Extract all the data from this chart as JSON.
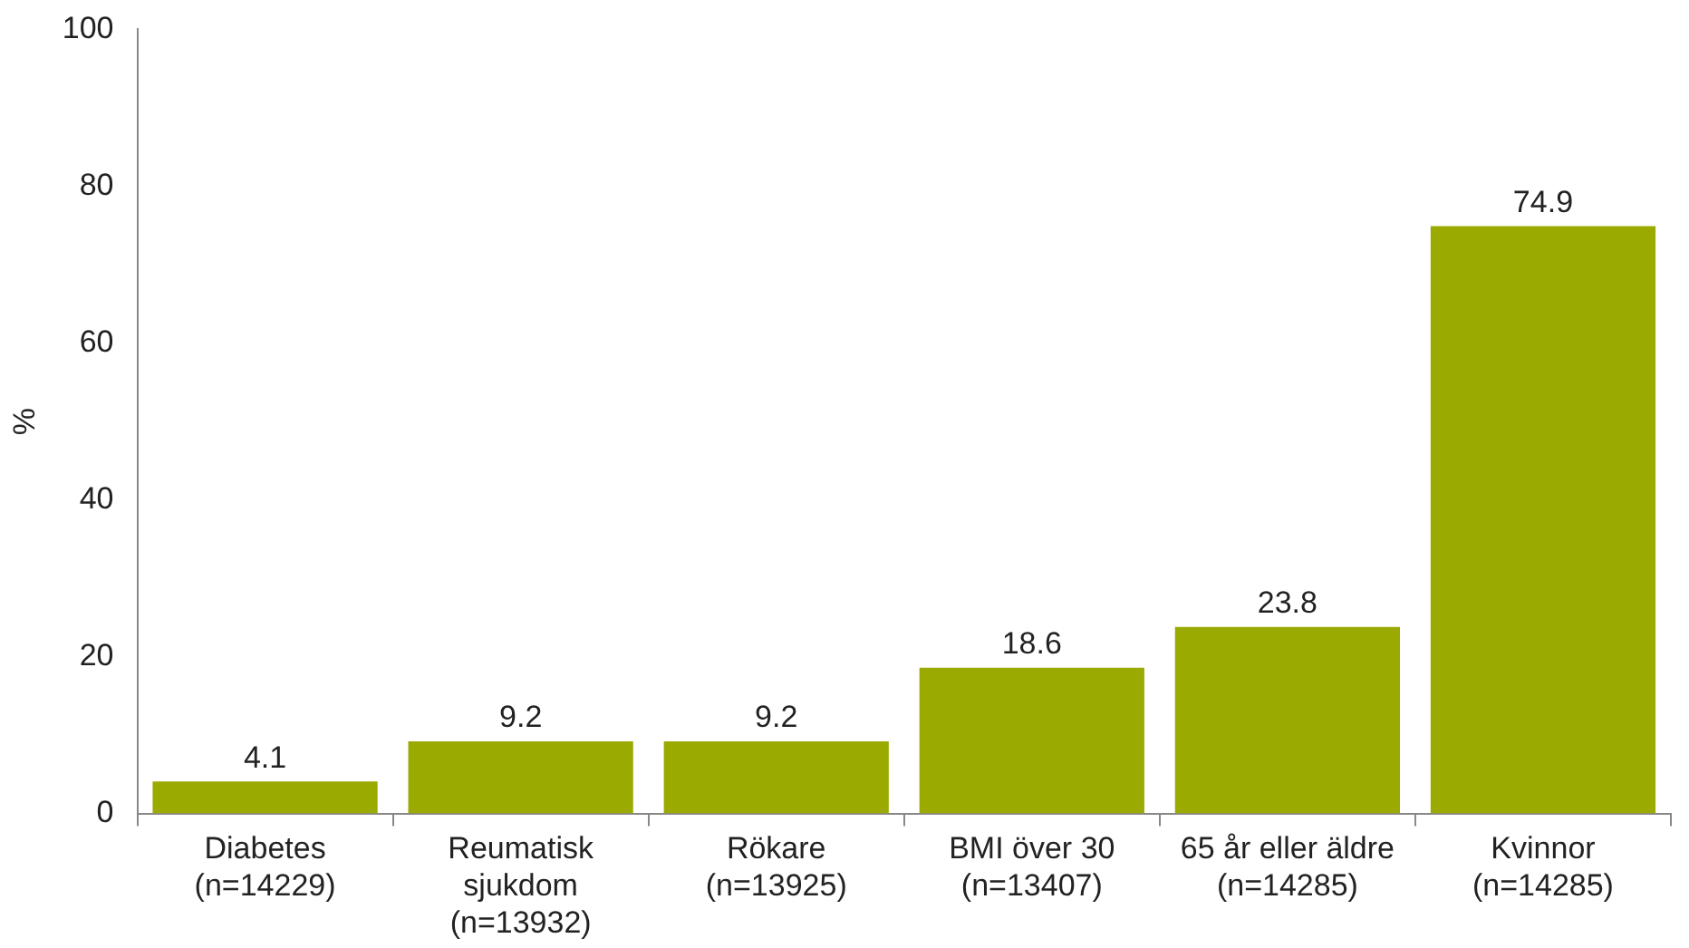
{
  "chart_data": {
    "type": "bar",
    "ylabel": "%",
    "categories": [
      "Diabetes (n=14229)",
      "Reumatisk sjukdom (n=13932)",
      "Rökare (n=13925)",
      "BMI över 30 (n=13407)",
      "65 år eller äldre (n=14285)",
      "Kvinnor (n=14285)"
    ],
    "values": [
      4.1,
      9.2,
      9.2,
      18.6,
      23.8,
      74.9
    ],
    "color": "#9aaa00",
    "ylim": [
      0,
      100
    ],
    "yticks": [
      0,
      20,
      40,
      60,
      80,
      100
    ],
    "grid": false,
    "legend": false,
    "data_labels": true
  }
}
